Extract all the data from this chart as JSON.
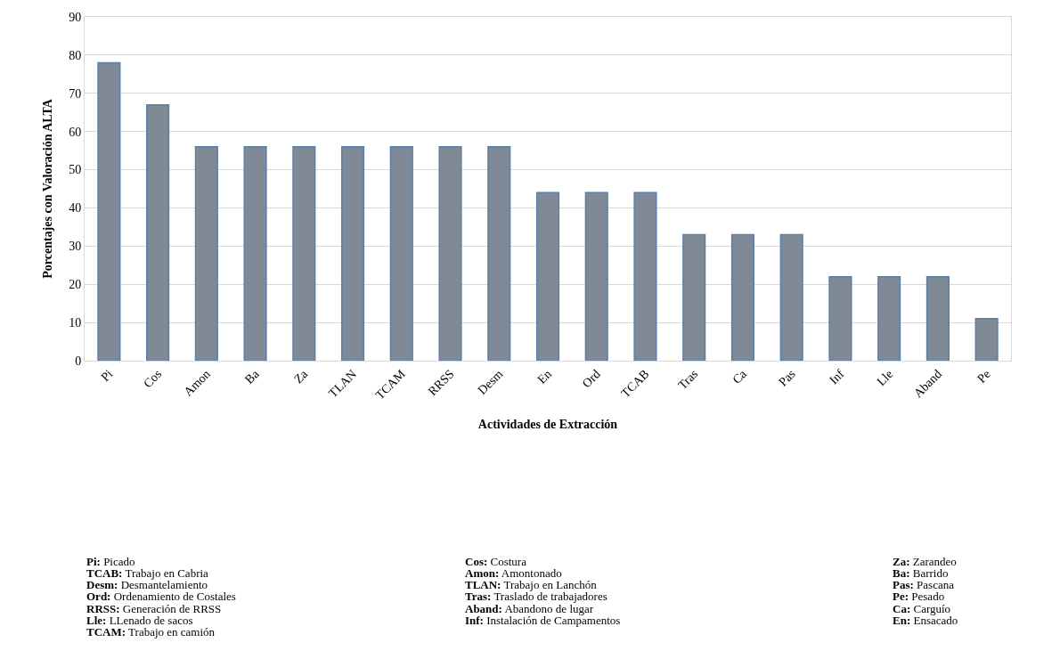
{
  "chart_data": {
    "type": "bar",
    "xlabel": "Actividades de Extracción",
    "ylabel": "Porcentajes con Valoración ALTA",
    "categories": [
      "Pi",
      "Cos",
      "Amon",
      "Ba",
      "Za",
      "TLAN",
      "TCAM",
      "RRSS",
      "Desm",
      "En",
      "Ord",
      "TCAB",
      "Tras",
      "Ca",
      "Pas",
      "Inf",
      "Lle",
      "Aband",
      "Pe"
    ],
    "values": [
      78,
      67,
      56,
      56,
      56,
      56,
      56,
      56,
      56,
      44,
      44,
      44,
      33,
      33,
      33,
      22,
      22,
      22,
      11
    ],
    "color": "#7f8a96",
    "ylim": [
      0,
      90
    ],
    "yticks": [
      0,
      10,
      20,
      30,
      40,
      50,
      60,
      70,
      80,
      90
    ],
    "grid": "y",
    "legend": false,
    "annotations": [
      "Pi: Picado",
      "Cos: Costura",
      "Za: Zarandeo",
      "TCAB: Trabajo en Cabria",
      "Amon: Amontonado",
      "Ba: Barrido",
      "Desm: Desmantelamiento",
      "TLAN: Trabajo en Lanchón",
      "Pas: Pascana",
      "Ord: Ordenamiento de Costales",
      "Tras: Traslado de trabajadores",
      "Pe: Pesado",
      "RRSS: Generación de RRSS",
      "Aband: Abandono de lugar",
      "Ca: Carguío",
      "Lle: LLenado de sacos",
      "Inf: Instalación de Campamentos",
      "En: Ensacado",
      "TCAM: Trabajo en camión"
    ]
  }
}
